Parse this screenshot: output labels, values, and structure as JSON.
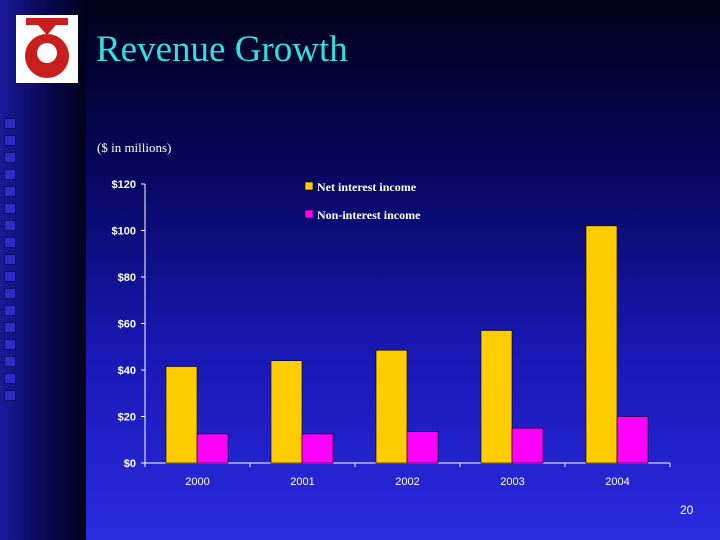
{
  "slide": {
    "title": "Revenue Growth",
    "subtitle": "($ in millions)",
    "page_number": "20"
  },
  "logo": {
    "name": "company-logo",
    "colors": [
      "#c81e1e",
      "#ffffff"
    ]
  },
  "colors": {
    "series_net": "#ffcc00",
    "series_non": "#ff00ff",
    "title": "#33e0e0"
  },
  "chart_data": {
    "type": "bar",
    "title": "",
    "xlabel": "",
    "ylabel": "",
    "categories": [
      "2000",
      "2001",
      "2002",
      "2003",
      "2004"
    ],
    "series": [
      {
        "name": "Net interest income",
        "values": [
          41.5,
          44,
          48.5,
          57,
          102
        ]
      },
      {
        "name": "Non-interest income",
        "values": [
          12.5,
          12.5,
          13.5,
          15,
          20
        ]
      }
    ],
    "ylim": [
      0,
      120
    ],
    "yticks": [
      0,
      20,
      40,
      60,
      80,
      100,
      120
    ],
    "ytick_labels": [
      "$0",
      "$20",
      "$40",
      "$60",
      "$80",
      "$100",
      "$120"
    ],
    "legend_position": "top-center",
    "grid": false
  }
}
